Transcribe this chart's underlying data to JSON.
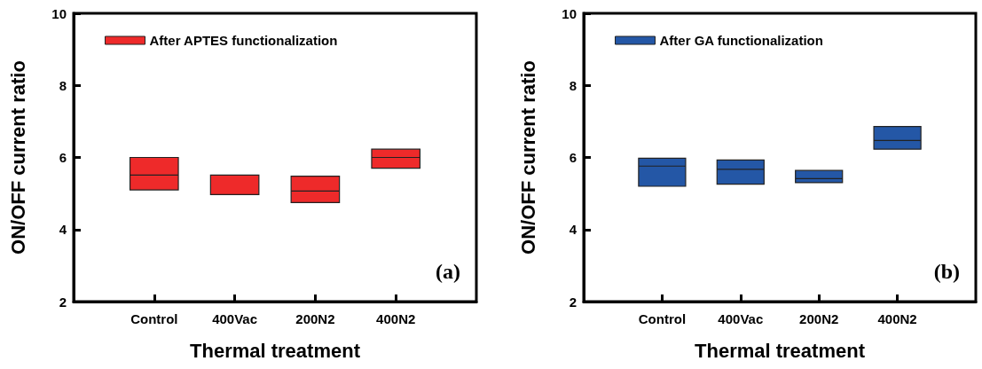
{
  "chart_data": [
    {
      "type": "box",
      "categories": [
        "Control",
        "400Vac",
        "200N2",
        "400N2"
      ],
      "xlabel": "Thermal treatment",
      "ylabel": "ON/OFF current ratio",
      "ylim": [
        2,
        10
      ],
      "yticks": [
        2,
        4,
        6,
        8,
        10
      ],
      "legend": "top left",
      "grid": false,
      "annotations": [
        "(a)"
      ],
      "series": [
        {
          "name": "After APTES functionalization",
          "color": "#ee2a2a",
          "boxes": [
            {
              "low": 5.1,
              "q1": 5.1,
              "median": 5.51,
              "q3": 6.0,
              "high": 6.0
            },
            {
              "low": 4.97,
              "q1": 4.97,
              "median": 5.51,
              "q3": 5.51,
              "high": 5.51
            },
            {
              "low": 4.75,
              "q1": 4.75,
              "median": 5.07,
              "q3": 5.48,
              "high": 5.48
            },
            {
              "low": 5.7,
              "q1": 5.7,
              "median": 6.0,
              "q3": 6.23,
              "high": 6.23
            }
          ]
        }
      ]
    },
    {
      "type": "box",
      "categories": [
        "Control",
        "400Vac",
        "200N2",
        "400N2"
      ],
      "xlabel": "Thermal treatment",
      "ylabel": "ON/OFF current ratio",
      "ylim": [
        2,
        10
      ],
      "yticks": [
        2,
        4,
        6,
        8,
        10
      ],
      "legend": "top left",
      "grid": false,
      "annotations": [
        "(b)"
      ],
      "series": [
        {
          "name": "After GA functionalization",
          "color": "#2457a6",
          "boxes": [
            {
              "low": 5.2,
              "q1": 5.2,
              "median": 5.76,
              "q3": 5.98,
              "high": 5.98
            },
            {
              "low": 5.26,
              "q1": 5.26,
              "median": 5.67,
              "q3": 5.93,
              "high": 5.93
            },
            {
              "low": 5.3,
              "q1": 5.3,
              "median": 5.41,
              "q3": 5.64,
              "high": 5.64
            },
            {
              "low": 6.23,
              "q1": 6.23,
              "median": 6.47,
              "q3": 6.86,
              "high": 6.86
            }
          ]
        }
      ]
    }
  ]
}
